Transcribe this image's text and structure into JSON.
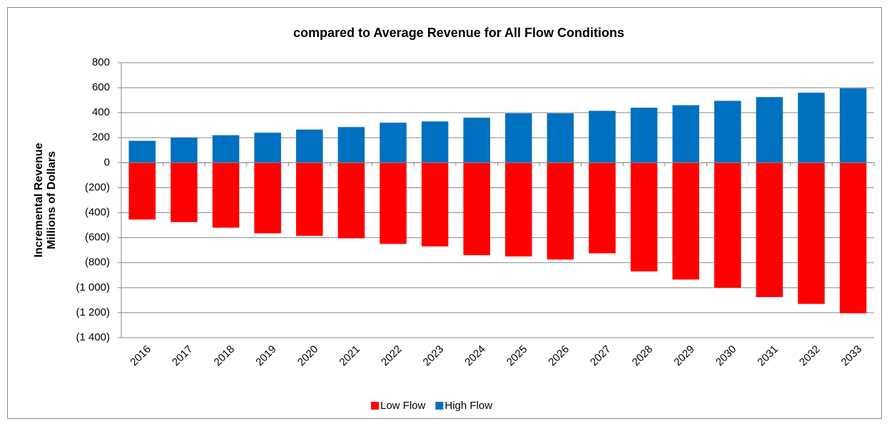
{
  "chart_data": {
    "type": "bar",
    "title": "compared to Average Revenue for All Flow Conditions",
    "ylabel": [
      "Incremental Revenue",
      "Millions of Dollars"
    ],
    "categories": [
      "2016",
      "2017",
      "2018",
      "2019",
      "2020",
      "2021",
      "2022",
      "2023",
      "2024",
      "2025",
      "2026",
      "2027",
      "2028",
      "2029",
      "2030",
      "2031",
      "2032",
      "2033"
    ],
    "series": [
      {
        "name": "Low Flow",
        "color": "#ff0000",
        "values": [
          -455,
          -475,
          -520,
          -565,
          -585,
          -605,
          -650,
          -670,
          -740,
          -750,
          -775,
          -725,
          -870,
          -935,
          -1000,
          -1075,
          -1130,
          -1205
        ]
      },
      {
        "name": "High Flow",
        "color": "#0070c0",
        "values": [
          175,
          200,
          220,
          240,
          265,
          285,
          320,
          330,
          360,
          395,
          395,
          415,
          440,
          460,
          495,
          525,
          560,
          595
        ]
      }
    ],
    "ylim": [
      -1400,
      800
    ],
    "yticks": [
      800,
      600,
      400,
      200,
      0,
      {
        "value": -200,
        "label": "(200)"
      },
      {
        "value": -400,
        "label": "(400)"
      },
      {
        "value": -600,
        "label": "(600)"
      },
      {
        "value": -800,
        "label": "(800)"
      },
      {
        "value": -1000,
        "label": "(1 000)"
      },
      {
        "value": -1200,
        "label": "(1 200)"
      },
      {
        "value": -1400,
        "label": "(1 400)"
      }
    ],
    "grid": true,
    "legend": "bottom"
  }
}
